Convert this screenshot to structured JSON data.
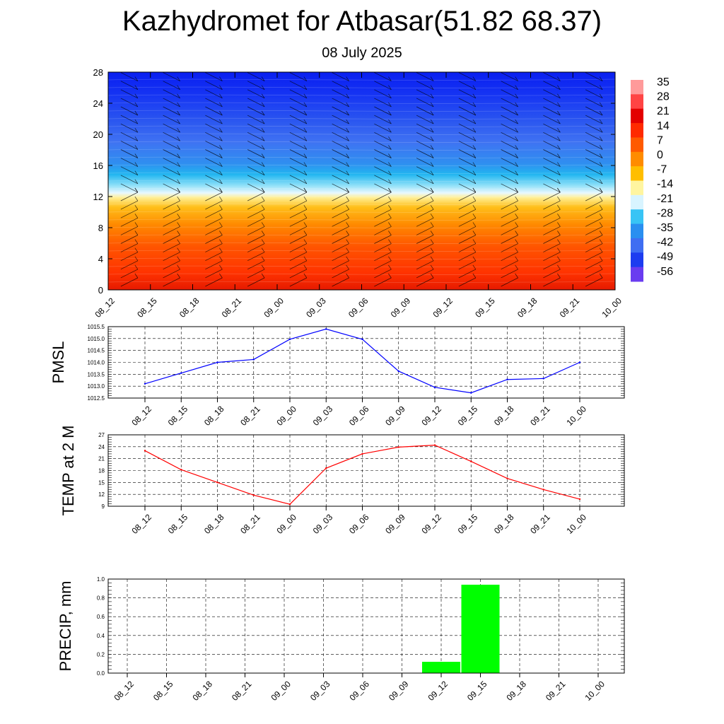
{
  "title": "Kazhydromet for Atbasar(51.82 68.37)",
  "subtitle": "08 July 2025",
  "colorbar": {
    "labels": [
      "35",
      "28",
      "21",
      "14",
      "7",
      "0",
      "-7",
      "-14",
      "-21",
      "-28",
      "-35",
      "-42",
      "-49",
      "-56"
    ]
  },
  "chart_data": [
    {
      "type": "heatmap",
      "title": "",
      "xlabel": "",
      "ylabel": "",
      "x": [
        "08_12",
        "08_15",
        "08_18",
        "08_21",
        "09_00",
        "09_03",
        "09_06",
        "09_09",
        "09_12",
        "09_15",
        "09_18",
        "09_21",
        "10_00"
      ],
      "yticks": [
        0,
        4,
        8,
        12,
        16,
        20,
        24,
        28
      ],
      "ylim": [
        0,
        28
      ],
      "zero_isotherm_level": 12.3,
      "temperature_by_level": [
        {
          "level": 0,
          "value": 21
        },
        {
          "level": 4,
          "value": 16
        },
        {
          "level": 8,
          "value": 8
        },
        {
          "level": 12,
          "value": -1
        },
        {
          "level": 14,
          "value": -14
        },
        {
          "level": 16,
          "value": -28
        },
        {
          "level": 20,
          "value": -42
        },
        {
          "level": 24,
          "value": -49
        },
        {
          "level": 28,
          "value": -56
        }
      ],
      "overlay": "wind barbs"
    },
    {
      "type": "line",
      "ylabel": "PMSL",
      "x": [
        "08_12",
        "08_15",
        "08_18",
        "08_21",
        "09_00",
        "09_03",
        "09_06",
        "09_09",
        "09_12",
        "09_15",
        "09_18",
        "09_21",
        "10_00"
      ],
      "yticks": [
        "1012.5",
        "1013.0",
        "1013.5",
        "1014.0",
        "1014.5",
        "1015.0",
        "1015.5"
      ],
      "ylim": [
        1012.5,
        1015.5
      ],
      "series": [
        {
          "color": "#0000ff",
          "values": [
            1013.1,
            1013.55,
            1014.0,
            1014.12,
            1014.97,
            1015.4,
            1014.97,
            1013.63,
            1012.95,
            1012.72,
            1013.28,
            1013.32,
            1014.0
          ]
        }
      ],
      "grid": true
    },
    {
      "type": "line",
      "ylabel": "TEMP at 2 M",
      "x": [
        "08_12",
        "08_15",
        "08_18",
        "08_21",
        "09_00",
        "09_03",
        "09_06",
        "09_09",
        "09_12",
        "09_15",
        "09_18",
        "09_21",
        "10_00"
      ],
      "yticks": [
        "9",
        "12",
        "15",
        "18",
        "21",
        "24",
        "27"
      ],
      "ylim": [
        9,
        27
      ],
      "series": [
        {
          "color": "#ff0000",
          "values": [
            23.0,
            18.2,
            15.0,
            11.8,
            9.5,
            18.6,
            22.2,
            23.9,
            24.4,
            20.3,
            16.0,
            13.2,
            10.8
          ]
        }
      ],
      "grid": true
    },
    {
      "type": "bar",
      "ylabel": "PRECIP, mm",
      "categories": [
        "08_12",
        "08_15",
        "08_18",
        "08_21",
        "09_00",
        "09_03",
        "09_06",
        "09_09",
        "09_12",
        "09_15",
        "09_18",
        "09_21",
        "10_00"
      ],
      "yticks": [
        "0.0",
        "0.2",
        "0.4",
        "0.6",
        "0.8",
        "1.0"
      ],
      "ylim": [
        0,
        1.0
      ],
      "values": [
        0,
        0,
        0,
        0,
        0,
        0,
        0,
        0,
        0.12,
        0.94,
        0,
        0,
        0
      ],
      "bar_color": "#00ff00",
      "grid": true
    }
  ]
}
